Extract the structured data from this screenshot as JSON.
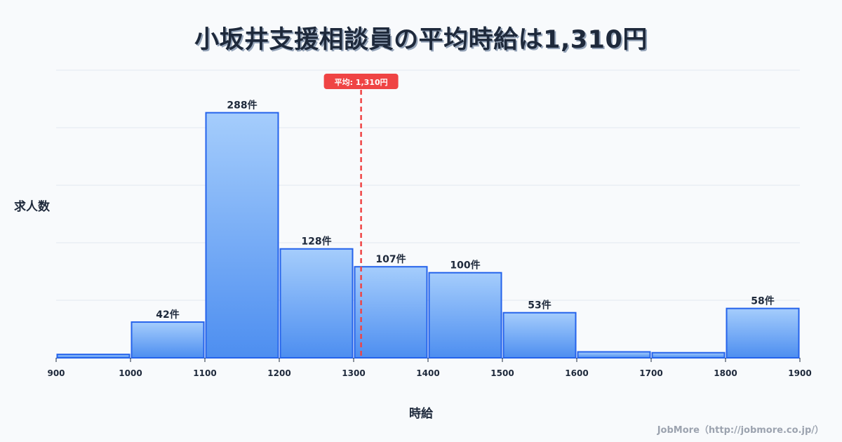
{
  "title": "小坂井支援相談員の平均時給は1,310円",
  "ylabel": "求人数",
  "xlabel": "時給",
  "credit": "JobMore（http://jobmore.co.jp/）",
  "mean": {
    "value": 1310,
    "label": "平均: 1,310円",
    "color": "#ef4444"
  },
  "colors": {
    "bar_top": "#a5cdfc",
    "bar_bottom": "#4d8ef0",
    "bar_stroke": "#2563eb",
    "grid": "#e2e8f0",
    "text": "#1e293b",
    "background": "#f8fafc"
  },
  "chart_data": {
    "type": "bar",
    "title": "小坂井支援相談員の平均時給は1,310円",
    "xlabel": "時給",
    "ylabel": "求人数",
    "bins": [
      {
        "from": 900,
        "to": 1000,
        "count": 4,
        "label": ""
      },
      {
        "from": 1000,
        "to": 1100,
        "count": 42,
        "label": "42件"
      },
      {
        "from": 1100,
        "to": 1200,
        "count": 288,
        "label": "288件"
      },
      {
        "from": 1200,
        "to": 1300,
        "count": 128,
        "label": "128件"
      },
      {
        "from": 1300,
        "to": 1400,
        "count": 107,
        "label": "107件"
      },
      {
        "from": 1400,
        "to": 1500,
        "count": 100,
        "label": "100件"
      },
      {
        "from": 1500,
        "to": 1600,
        "count": 53,
        "label": "53件"
      },
      {
        "from": 1600,
        "to": 1700,
        "count": 7,
        "label": ""
      },
      {
        "from": 1700,
        "to": 1800,
        "count": 6,
        "label": ""
      },
      {
        "from": 1800,
        "to": 1900,
        "count": 58,
        "label": "58件"
      }
    ],
    "categories": [
      "900-1000",
      "1000-1100",
      "1100-1200",
      "1200-1300",
      "1300-1400",
      "1400-1500",
      "1500-1600",
      "1600-1700",
      "1700-1800",
      "1800-1900"
    ],
    "values": [
      4,
      42,
      288,
      128,
      107,
      100,
      53,
      7,
      6,
      58
    ],
    "x_ticks": [
      900,
      1000,
      1100,
      1200,
      1300,
      1400,
      1500,
      1600,
      1700,
      1800,
      1900
    ],
    "xlim": [
      900,
      1900
    ],
    "ylim": [
      0,
      338
    ],
    "grid": true,
    "y_tick_labels_shown": false,
    "annotations": [
      {
        "type": "vline",
        "x": 1310,
        "label": "平均: 1,310円",
        "style": "dashed",
        "color": "#ef4444"
      }
    ]
  }
}
